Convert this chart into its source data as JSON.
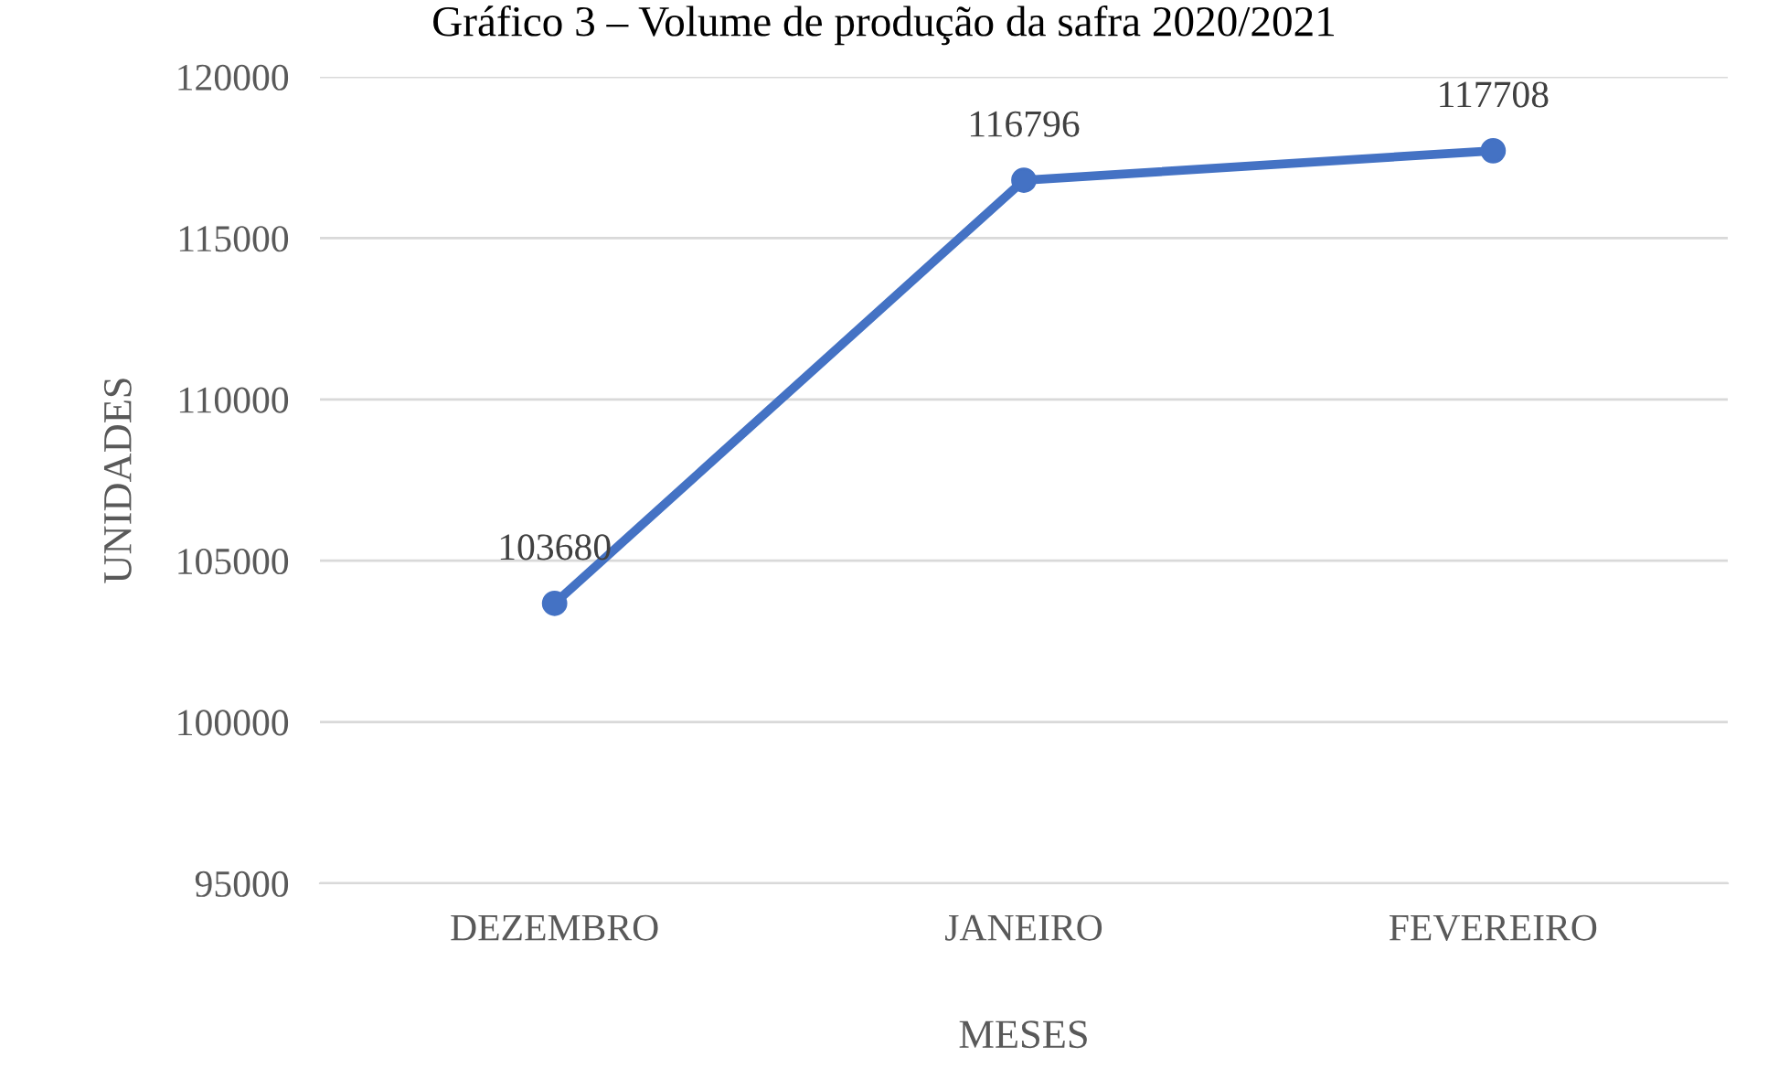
{
  "chart_data": {
    "type": "line",
    "title": "Gráfico 3 – Volume de produção da safra 2020/2021",
    "xlabel": "MESES",
    "ylabel": "UNIDADES",
    "categories": [
      "DEZEMBRO",
      "JANEIRO",
      "FEVEREIRO"
    ],
    "series": [
      {
        "color": "#4472c4",
        "values": [
          103680,
          116796,
          117708
        ]
      }
    ],
    "ylim": [
      95000,
      120000
    ],
    "yticks": [
      95000,
      100000,
      105000,
      110000,
      115000,
      120000
    ],
    "grid": "y",
    "marker": "circle",
    "line_style": "solid",
    "data_labels": true
  }
}
